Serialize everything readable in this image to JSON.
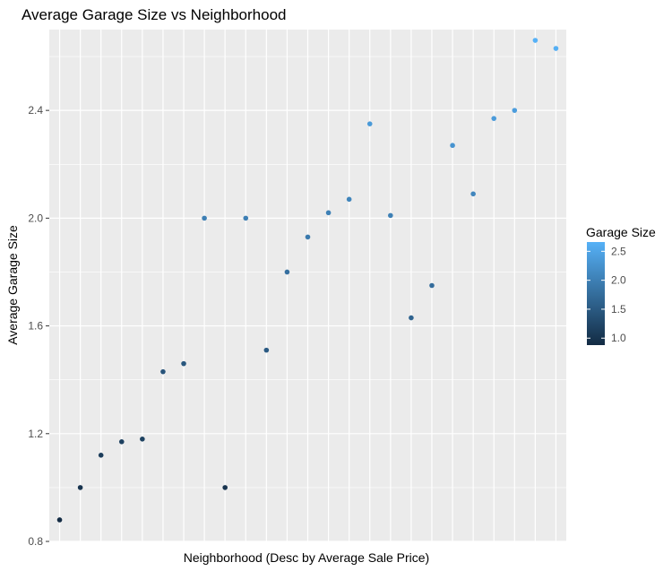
{
  "chart_data": {
    "type": "scatter",
    "title": "Average Garage Size vs Neighborhood",
    "xlabel": "Neighborhood (Desc by Average Sale Price)",
    "ylabel": "Average Garage Size",
    "ylim": [
      0.8,
      2.7
    ],
    "yticks": [
      "0.8",
      "1.2",
      "1.6",
      "2.0",
      "2.4"
    ],
    "x": [
      1,
      2,
      3,
      4,
      5,
      6,
      7,
      8,
      9,
      10,
      11,
      12,
      13,
      14,
      15,
      16,
      17,
      18,
      19,
      20,
      21,
      22,
      23,
      24,
      25
    ],
    "y": [
      0.88,
      1.0,
      1.12,
      1.17,
      1.18,
      1.43,
      1.46,
      2.0,
      1.0,
      2.0,
      1.51,
      1.8,
      1.93,
      2.02,
      2.07,
      2.35,
      2.01,
      1.63,
      1.75,
      2.27,
      2.09,
      2.37,
      2.4,
      2.66,
      2.63
    ],
    "color_scale": {
      "low": "#132b43",
      "high": "#56b1f7",
      "min": 0.88,
      "max": 2.66
    },
    "grid": true,
    "legend": {
      "title": "Garage Size",
      "placement": "right",
      "ticks": [
        "1.0",
        "1.5",
        "2.0",
        "2.5"
      ],
      "tick_values": [
        1.0,
        1.5,
        2.0,
        2.5
      ]
    },
    "panel_background": "#ebebeb",
    "grid_color": "#ffffff"
  }
}
